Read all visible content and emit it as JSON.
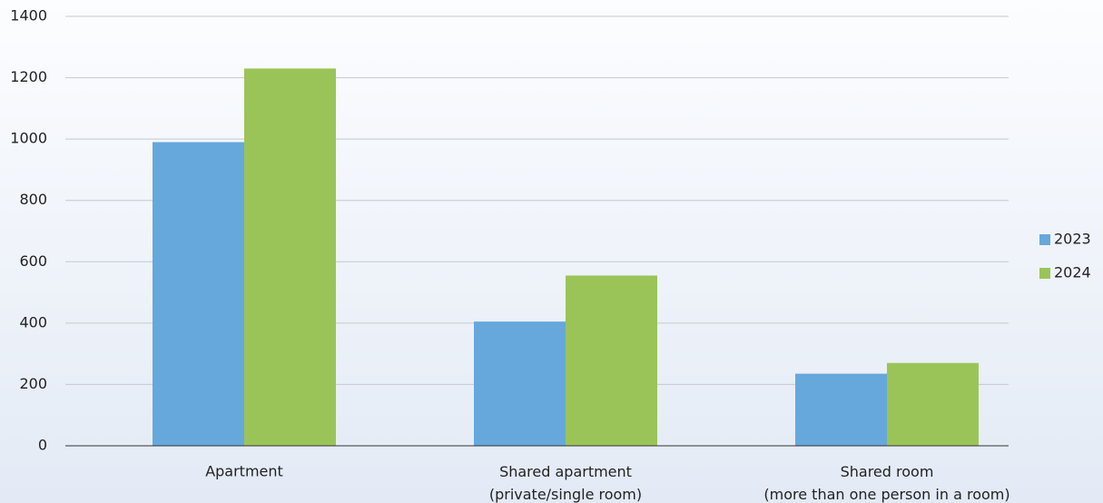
{
  "chart_data": {
    "type": "bar",
    "categories": [
      "Apartment",
      "Shared apartment\n(private/single room)",
      "Shared room\n(more than one person in a room)"
    ],
    "series": [
      {
        "name": "2023",
        "color": "#66a8dc",
        "values": [
          990,
          405,
          235
        ]
      },
      {
        "name": "2024",
        "color": "#9bc458",
        "values": [
          1230,
          555,
          270
        ]
      }
    ],
    "ylim": [
      0,
      1400
    ],
    "yticks": [
      0,
      200,
      400,
      600,
      800,
      1000,
      1200,
      1400
    ],
    "grid": true,
    "legend": "right"
  }
}
